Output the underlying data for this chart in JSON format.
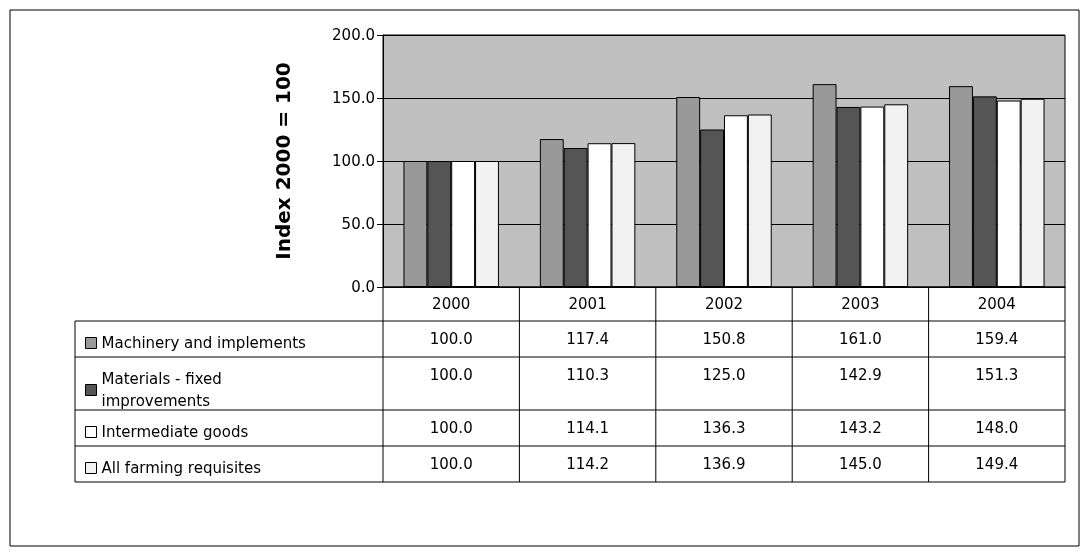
{
  "chart_data": {
    "type": "bar",
    "ylabel": "Index 2000 = 100",
    "categories": [
      "2000",
      "2001",
      "2002",
      "2003",
      "2004"
    ],
    "series": [
      {
        "name": "Machinery and implements",
        "color": "#999999",
        "values": [
          100.0,
          117.4,
          150.8,
          161.0,
          159.4
        ],
        "value_labels": [
          "100.0",
          "117.4",
          "150.8",
          "161.0",
          "159.4"
        ]
      },
      {
        "name": "Materials - fixed improvements",
        "color": "#555555",
        "values": [
          100.0,
          110.3,
          125.0,
          142.9,
          151.3
        ],
        "value_labels": [
          "100.0",
          "110.3",
          "125.0",
          "142.9",
          "151.3"
        ]
      },
      {
        "name": "Intermediate goods",
        "color": "#ffffff",
        "values": [
          100.0,
          114.1,
          136.3,
          143.2,
          148.0
        ],
        "value_labels": [
          "100.0",
          "114.1",
          "136.3",
          "143.2",
          "148.0"
        ]
      },
      {
        "name": "All farming requisites",
        "color": "#f2f2f2",
        "values": [
          100.0,
          114.2,
          136.9,
          145.0,
          149.4
        ],
        "value_labels": [
          "100.0",
          "114.2",
          "136.9",
          "145.0",
          "149.4"
        ]
      }
    ],
    "ylim": [
      0,
      200
    ],
    "yticks": [
      {
        "value": 0,
        "label": "0.0"
      },
      {
        "value": 50,
        "label": "50.0"
      },
      {
        "value": 100,
        "label": "100.0"
      },
      {
        "value": 150,
        "label": "150.0"
      },
      {
        "value": 200,
        "label": "200.0"
      }
    ],
    "grid": "y",
    "legend": "bottom"
  }
}
